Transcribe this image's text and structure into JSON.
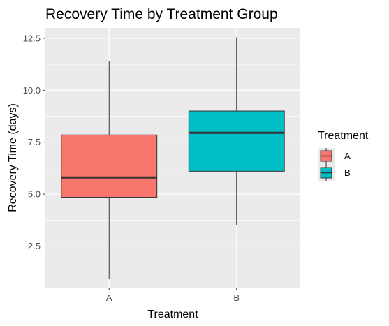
{
  "chart_data": {
    "type": "boxplot",
    "title": "Recovery Time by Treatment Group",
    "xlabel": "Treatment",
    "ylabel": "Recovery Time (days)",
    "ylim": [
      0.5,
      13.0
    ],
    "yticks": [
      2.5,
      5.0,
      7.5,
      10.0,
      12.5
    ],
    "ytick_labels": [
      "2.5",
      "5.0",
      "7.5",
      "10.0",
      "12.5"
    ],
    "categories": [
      "A",
      "B"
    ],
    "boxes": [
      {
        "category": "A",
        "min": 0.9,
        "q1": 4.85,
        "median": 5.8,
        "q3": 7.85,
        "max": 11.4,
        "color": "#F8766D"
      },
      {
        "category": "B",
        "min": 3.5,
        "q1": 6.1,
        "median": 7.95,
        "q3": 9.0,
        "max": 12.55,
        "color": "#00BFC4"
      }
    ],
    "grid": true,
    "panel_background": "#EBEBEB",
    "grid_color": "#FFFFFF",
    "legend": {
      "title": "Treatment",
      "position": "right",
      "items": [
        {
          "label": "A",
          "color": "#F8766D"
        },
        {
          "label": "B",
          "color": "#00BFC4"
        }
      ]
    }
  }
}
